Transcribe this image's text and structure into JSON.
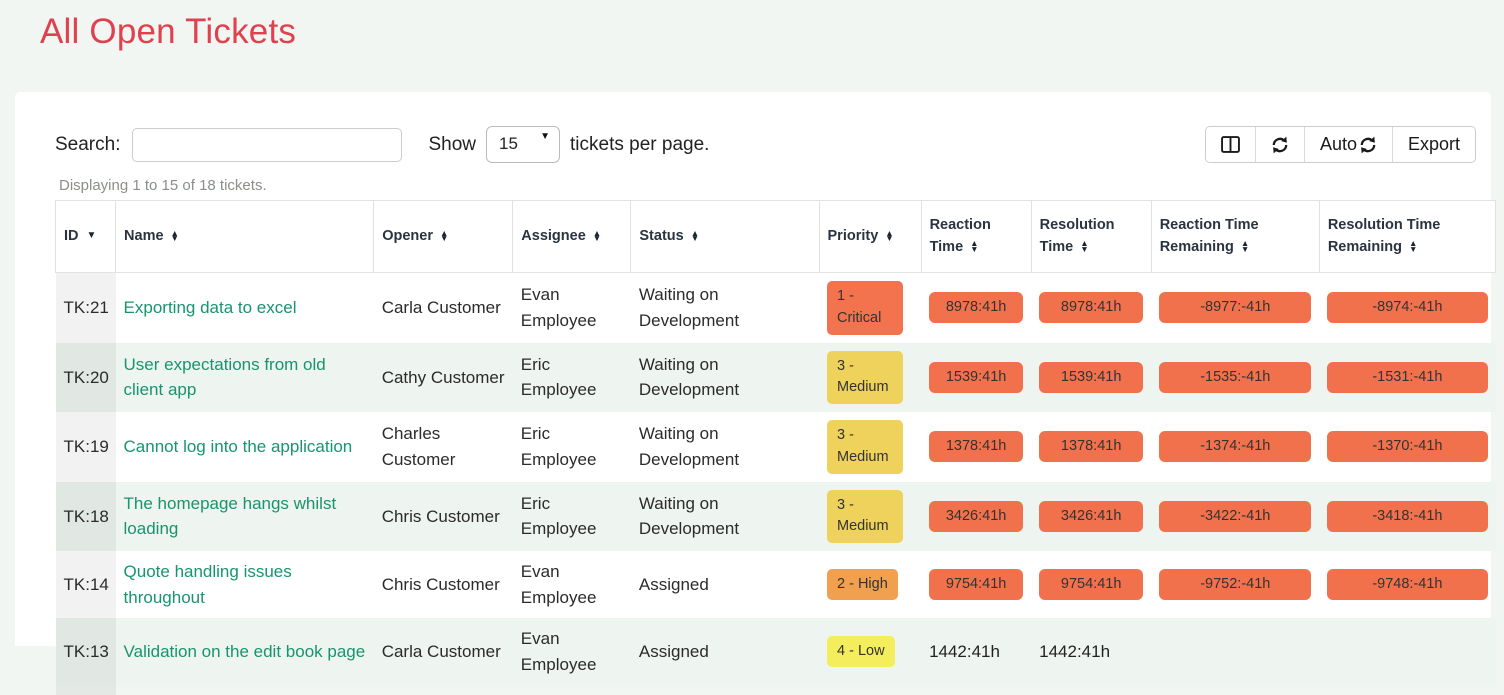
{
  "page": {
    "title": "All Open Tickets",
    "accent_color": "#e0414f",
    "background": "#f2f6f2"
  },
  "toolbar": {
    "search_label": "Search:",
    "search_value": "",
    "show_label": "Show",
    "page_size": "15",
    "per_page_label": "tickets per page.",
    "buttons": [
      {
        "name": "columns-button",
        "icon": "columns-icon",
        "label": ""
      },
      {
        "name": "refresh-button",
        "icon": "refresh-icon",
        "label": ""
      },
      {
        "name": "auto-refresh-button",
        "icon": "refresh-icon",
        "label": "Auto"
      },
      {
        "name": "export-button",
        "icon": "",
        "label": "Export"
      }
    ],
    "auto_label": "Auto",
    "export_label": "Export"
  },
  "summary": "Displaying 1 to 15 of 18 tickets.",
  "table": {
    "columns": [
      {
        "label": "ID",
        "sort": "desc"
      },
      {
        "label": "Name",
        "sort": "both"
      },
      {
        "label": "Opener",
        "sort": "both"
      },
      {
        "label": "Assignee",
        "sort": "both"
      },
      {
        "label": "Status",
        "sort": "both"
      },
      {
        "label": "Priority",
        "sort": "both"
      },
      {
        "label": "Reaction Time",
        "sort": "both"
      },
      {
        "label": "Resolution Time",
        "sort": "both"
      },
      {
        "label": "Reaction Time Remaining",
        "sort": "both"
      },
      {
        "label": "Resolution Time Remaining",
        "sort": "both"
      }
    ],
    "badge_color": "#f2714d",
    "priority_colors": {
      "critical": "#f2734e",
      "high": "#f0a04f",
      "medium": "#eed25c",
      "low": "#f4ee5c"
    },
    "rows": [
      {
        "id": "TK:21",
        "name": "Exporting data to excel",
        "opener": "Carla Customer",
        "assignee": "Evan Employee",
        "status": "Waiting on Development",
        "priority": {
          "label": "1 - Critical",
          "color": "#f2734e"
        },
        "reaction": {
          "text": "8978:41h",
          "badge": true
        },
        "resolution": {
          "text": "8978:41h",
          "badge": true
        },
        "reaction_remaining": {
          "text": "-8977:-41h",
          "badge": true
        },
        "resolution_remaining": {
          "text": "-8974:-41h",
          "badge": true
        }
      },
      {
        "id": "TK:20",
        "name": "User expectations from old client app",
        "opener": "Cathy Customer",
        "assignee": "Eric Employee",
        "status": "Waiting on Development",
        "priority": {
          "label": "3 - Medium",
          "color": "#eed25c"
        },
        "reaction": {
          "text": "1539:41h",
          "badge": true
        },
        "resolution": {
          "text": "1539:41h",
          "badge": true
        },
        "reaction_remaining": {
          "text": "-1535:-41h",
          "badge": true
        },
        "resolution_remaining": {
          "text": "-1531:-41h",
          "badge": true
        }
      },
      {
        "id": "TK:19",
        "name": "Cannot log into the application",
        "opener": "Charles Customer",
        "assignee": "Eric Employee",
        "status": "Waiting on Development",
        "priority": {
          "label": "3 - Medium",
          "color": "#eed25c"
        },
        "reaction": {
          "text": "1378:41h",
          "badge": true
        },
        "resolution": {
          "text": "1378:41h",
          "badge": true
        },
        "reaction_remaining": {
          "text": "-1374:-41h",
          "badge": true
        },
        "resolution_remaining": {
          "text": "-1370:-41h",
          "badge": true
        }
      },
      {
        "id": "TK:18",
        "name": "The homepage hangs whilst loading",
        "opener": "Chris Customer",
        "assignee": "Eric Employee",
        "status": "Waiting on Development",
        "priority": {
          "label": "3 - Medium",
          "color": "#eed25c"
        },
        "reaction": {
          "text": "3426:41h",
          "badge": true
        },
        "resolution": {
          "text": "3426:41h",
          "badge": true
        },
        "reaction_remaining": {
          "text": "-3422:-41h",
          "badge": true
        },
        "resolution_remaining": {
          "text": "-3418:-41h",
          "badge": true
        }
      },
      {
        "id": "TK:14",
        "name": "Quote handling issues throughout",
        "opener": "Chris Customer",
        "assignee": "Evan Employee",
        "status": "Assigned",
        "priority": {
          "label": "2 - High",
          "color": "#f0a04f"
        },
        "reaction": {
          "text": "9754:41h",
          "badge": true
        },
        "resolution": {
          "text": "9754:41h",
          "badge": true
        },
        "reaction_remaining": {
          "text": "-9752:-41h",
          "badge": true
        },
        "resolution_remaining": {
          "text": "-9748:-41h",
          "badge": true
        }
      },
      {
        "id": "TK:13",
        "name": "Validation on the edit book page",
        "opener": "Carla Customer",
        "assignee": "Evan Employee",
        "status": "Assigned",
        "priority": {
          "label": "4 - Low",
          "color": "#f4ee5c"
        },
        "reaction": {
          "text": "1442:41h",
          "badge": false
        },
        "resolution": {
          "text": "1442:41h",
          "badge": false
        },
        "reaction_remaining": {
          "text": "",
          "badge": false
        },
        "resolution_remaining": {
          "text": "",
          "badge": false
        }
      }
    ]
  }
}
